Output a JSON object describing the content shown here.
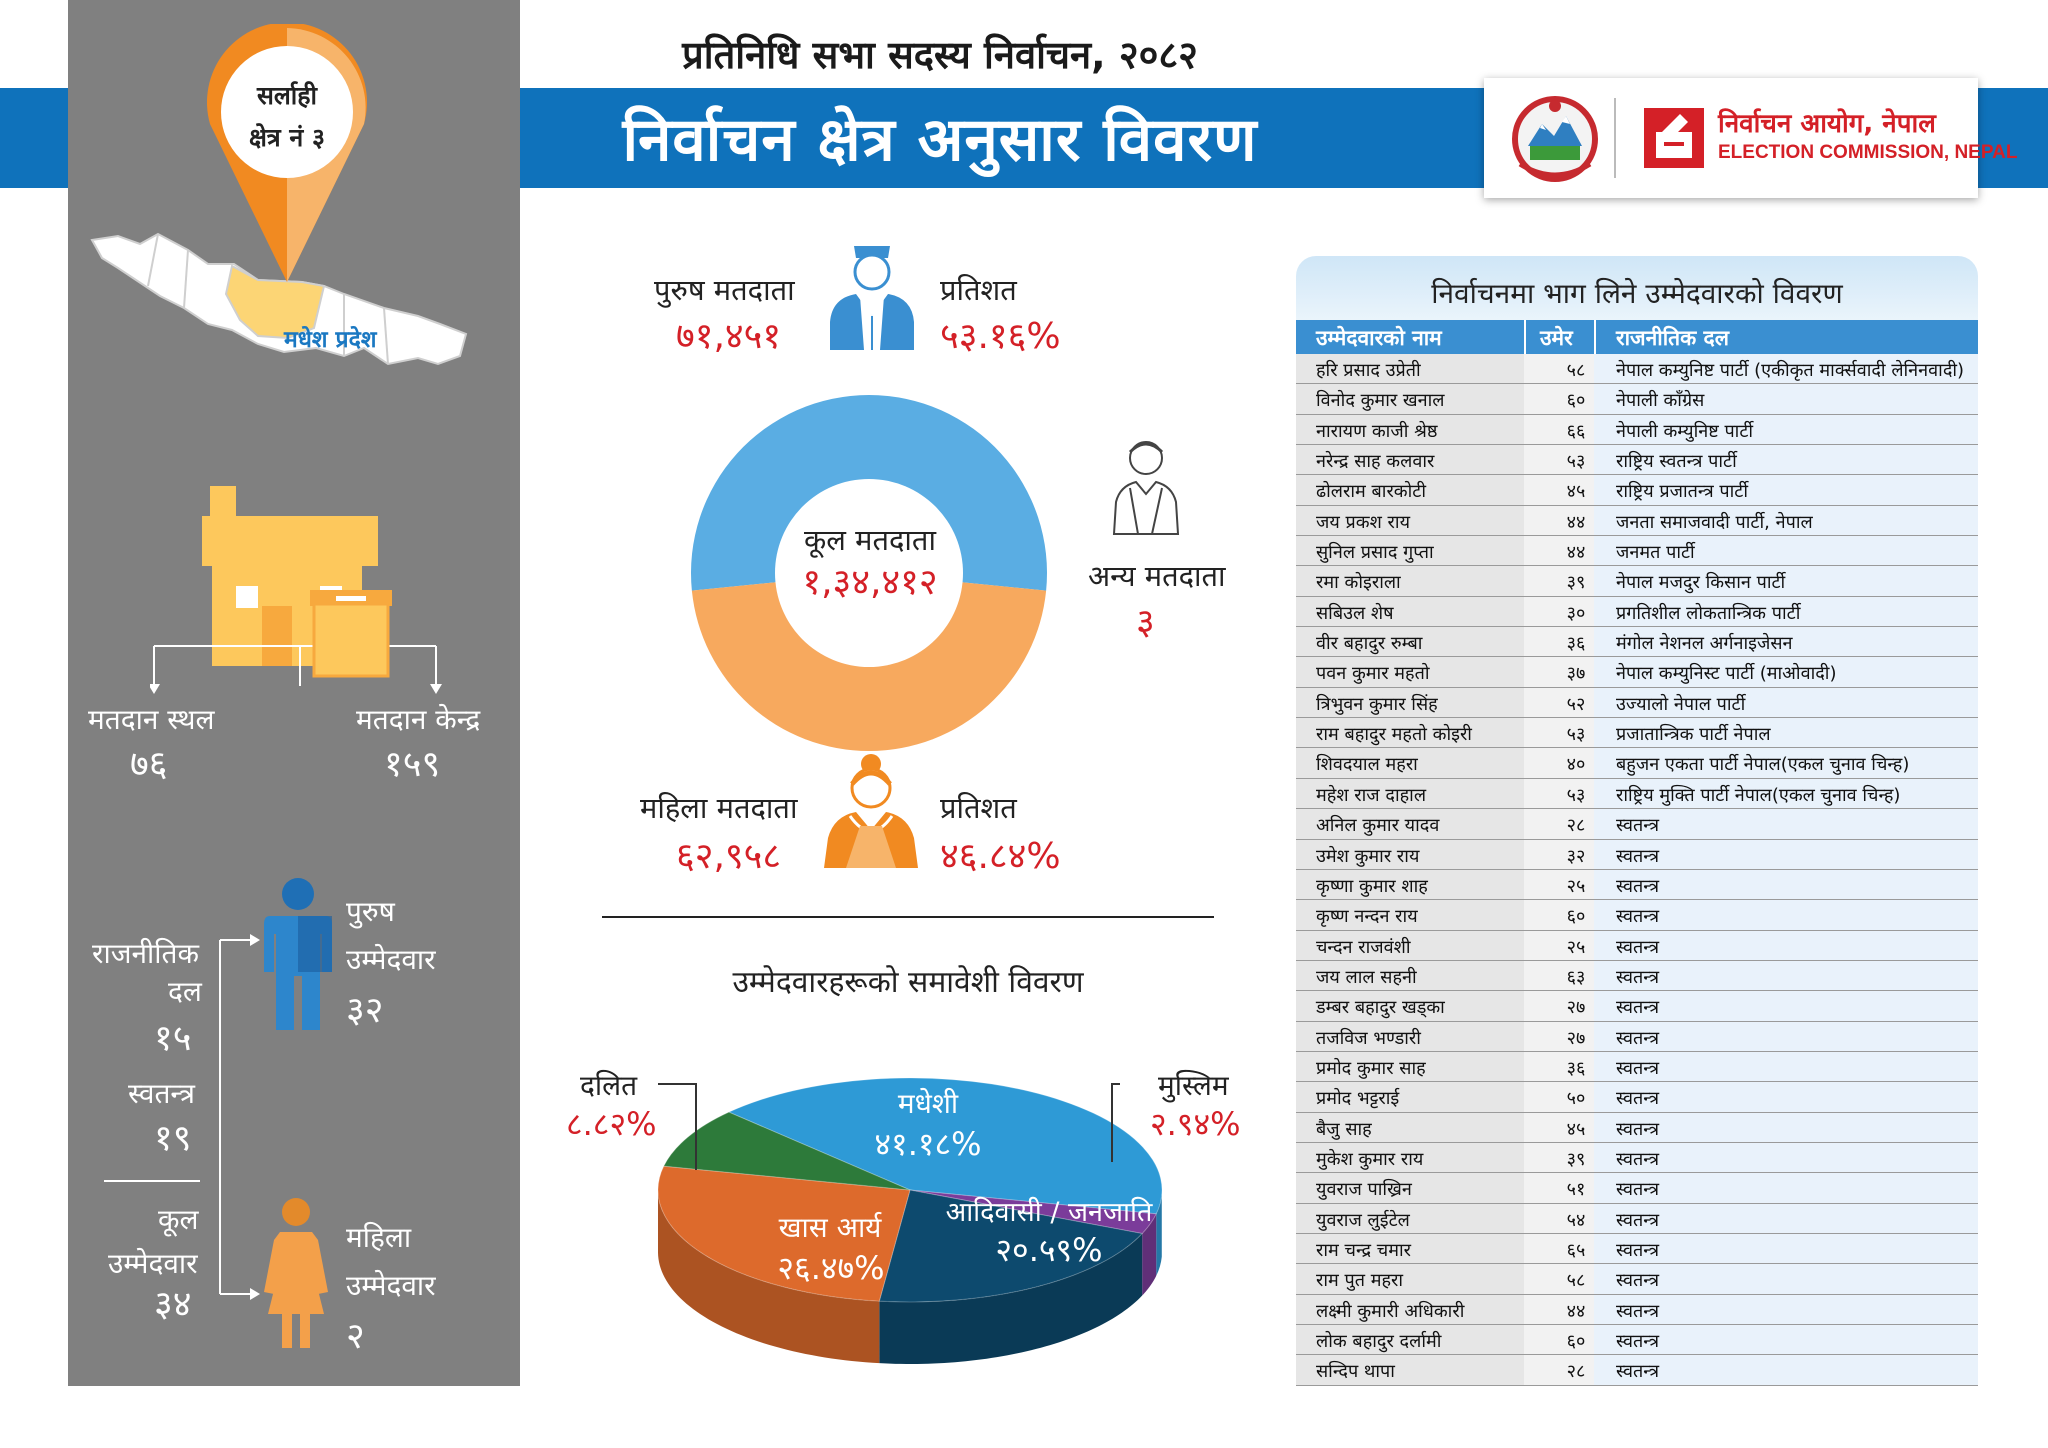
{
  "header": {
    "top_title": "प्रतिनिधि सभा सदस्य निर्वाचन, २०८२",
    "main_title": "निर्वाचन क्षेत्र अनुसार विवरण",
    "logo_ne": "निर्वाचन आयोग, नेपाल",
    "logo_en": "ELECTION COMMISSION, NEPAL"
  },
  "region": {
    "district": "सर्लाही",
    "constituency": "क्षेत्र नं ३",
    "province": "मधेश प्रदेश"
  },
  "polling": {
    "station_label": "मतदान स्थल",
    "station_value": "७६",
    "centre_label": "मतदान केन्द्र",
    "centre_value": "१५९"
  },
  "candidates": {
    "party_label_1": "राजनीतिक",
    "party_label_2": "दल",
    "party_value": "१५",
    "independent_label": "स्वतन्त्र",
    "independent_value": "१९",
    "total_label_1": "कूल",
    "total_label_2": "उम्मेदवार",
    "total_value": "३४",
    "male_label_1": "पुरुष",
    "male_label_2": "उम्मेदवार",
    "male_value": "३२",
    "female_label_1": "महिला",
    "female_label_2": "उम्मेदवार",
    "female_value": "२"
  },
  "voters": {
    "male_label": "पुरुष मतदाता",
    "male_value": "७१,४५१",
    "male_pct_label": "प्रतिशत",
    "male_pct": "५३.१६%",
    "female_label": "महिला मतदाता",
    "female_value": "६२,९५८",
    "female_pct_label": "प्रतिशत",
    "female_pct": "४६.८४%",
    "total_label": "कूल मतदाता",
    "total_value": "१,३४,४१२",
    "other_label": "अन्य मतदाता",
    "other_value": "३"
  },
  "inclusion_title": "उम्मेदवारहरूको समावेशी विवरण",
  "chart_data": [
    {
      "type": "pie",
      "variant": "donut",
      "categories": [
        "पुरुष मतदाता",
        "महिला मतदाता"
      ],
      "values": [
        53.16,
        46.84
      ],
      "counts": [
        71451,
        62958
      ],
      "center_label": "कूल मतदाता",
      "center_value": "१,३४,४१२",
      "colors": [
        "#5aade3",
        "#f7a95e"
      ]
    },
    {
      "type": "pie",
      "variant": "3d",
      "title": "उम्मेदवारहरूको समावेशी विवरण",
      "categories": [
        "मधेशी",
        "आदिवासी / जनजाति",
        "खास आर्य",
        "दलित",
        "मुस्लिम"
      ],
      "labels_pct": [
        "४१.१८%",
        "२०.५९%",
        "२६.४७%",
        "८.८२%",
        "२.९४%"
      ],
      "values": [
        41.18,
        20.59,
        26.47,
        8.82,
        2.94
      ],
      "colors": [
        "#2e9ad6",
        "#0d4a6e",
        "#dd6a2c",
        "#2d7a3a",
        "#7b3c9a"
      ]
    }
  ],
  "table": {
    "title": "निर्वाचनमा भाग लिने उम्मेदवारको विवरण",
    "columns": [
      "उम्मेदवारको नाम",
      "उमेर",
      "राजनीतिक दल"
    ],
    "rows": [
      [
        "हरि प्रसाद उप्रेती",
        "५८",
        "नेपाल कम्युनिष्ट पार्टी (एकीकृत मार्क्सवादी लेनिनवादी)"
      ],
      [
        "विनोद कुमार खनाल",
        "६०",
        "नेपाली काँग्रेस"
      ],
      [
        "नारायण काजी श्रेष्ठ",
        "६६",
        "नेपाली कम्युनिष्ट पार्टी"
      ],
      [
        "नरेन्द्र साह कलवार",
        "५३",
        "राष्ट्रिय स्वतन्त्र पार्टी"
      ],
      [
        "ढोलराम बारकोटी",
        "४५",
        "राष्ट्रिय प्रजातन्त्र पार्टी"
      ],
      [
        "जय प्रकश राय",
        "४४",
        "जनता समाजवादी पार्टी, नेपाल"
      ],
      [
        "सुनिल प्रसाद गुप्ता",
        "४४",
        "जनमत पार्टी"
      ],
      [
        "रमा कोइराला",
        "३९",
        "नेपाल मजदुर किसान पार्टी"
      ],
      [
        "सबिउल शेष",
        "३०",
        "प्रगतिशील लोकतान्त्रिक पार्टी"
      ],
      [
        "वीर बहादुर रुम्बा",
        "३६",
        "मंगोल नेशनल अर्गनाइजेसन"
      ],
      [
        "पवन कुमार महतो",
        "३७",
        "नेपाल कम्युनिस्ट पार्टी (माओवादी)"
      ],
      [
        "त्रिभुवन कुमार सिंह",
        "५२",
        "उज्यालो नेपाल पार्टी"
      ],
      [
        "राम बहादुर महतो कोइरी",
        "५३",
        "प्रजातान्त्रिक पार्टी नेपाल"
      ],
      [
        "शिवदयाल महरा",
        "४०",
        "बहुजन एकता पार्टी नेपाल(एकल चुनाव चिन्ह)"
      ],
      [
        "महेश राज दाहाल",
        "५३",
        "राष्ट्रिय मुक्ति पार्टी नेपाल(एकल चुनाव चिन्ह)"
      ],
      [
        "अनिल कुमार यादव",
        "२८",
        "स्वतन्त्र"
      ],
      [
        "उमेश कुमार राय",
        "३२",
        "स्वतन्त्र"
      ],
      [
        "कृष्णा कुमार शाह",
        "२५",
        "स्वतन्त्र"
      ],
      [
        "कृष्ण नन्दन राय",
        "६०",
        "स्वतन्त्र"
      ],
      [
        "चन्दन राजवंशी",
        "२५",
        "स्वतन्त्र"
      ],
      [
        "जय लाल सहनी",
        "६३",
        "स्वतन्त्र"
      ],
      [
        "डम्बर बहादुर खड्का",
        "२७",
        "स्वतन्त्र"
      ],
      [
        "तजविज भण्डारी",
        "२७",
        "स्वतन्त्र"
      ],
      [
        "प्रमोद कुमार साह",
        "३६",
        "स्वतन्त्र"
      ],
      [
        "प्रमोद भट्टराई",
        "५०",
        "स्वतन्त्र"
      ],
      [
        "बैजु साह",
        "४५",
        "स्वतन्त्र"
      ],
      [
        "मुकेश कुमार राय",
        "३९",
        "स्वतन्त्र"
      ],
      [
        "युवराज पाख्रिन",
        "५१",
        "स्वतन्त्र"
      ],
      [
        "युवराज लुईटेल",
        "५४",
        "स्वतन्त्र"
      ],
      [
        "राम चन्द्र चमार",
        "६५",
        "स्वतन्त्र"
      ],
      [
        "राम पुत महरा",
        "५८",
        "स्वतन्त्र"
      ],
      [
        "लक्ष्मी कुमारी अधिकारी",
        "४४",
        "स्वतन्त्र"
      ],
      [
        "लोक बहादुर दर्लामी",
        "६०",
        "स्वतन्त्र"
      ],
      [
        "सन्दिप थापा",
        "२८",
        "स्वतन्त्र"
      ]
    ]
  }
}
